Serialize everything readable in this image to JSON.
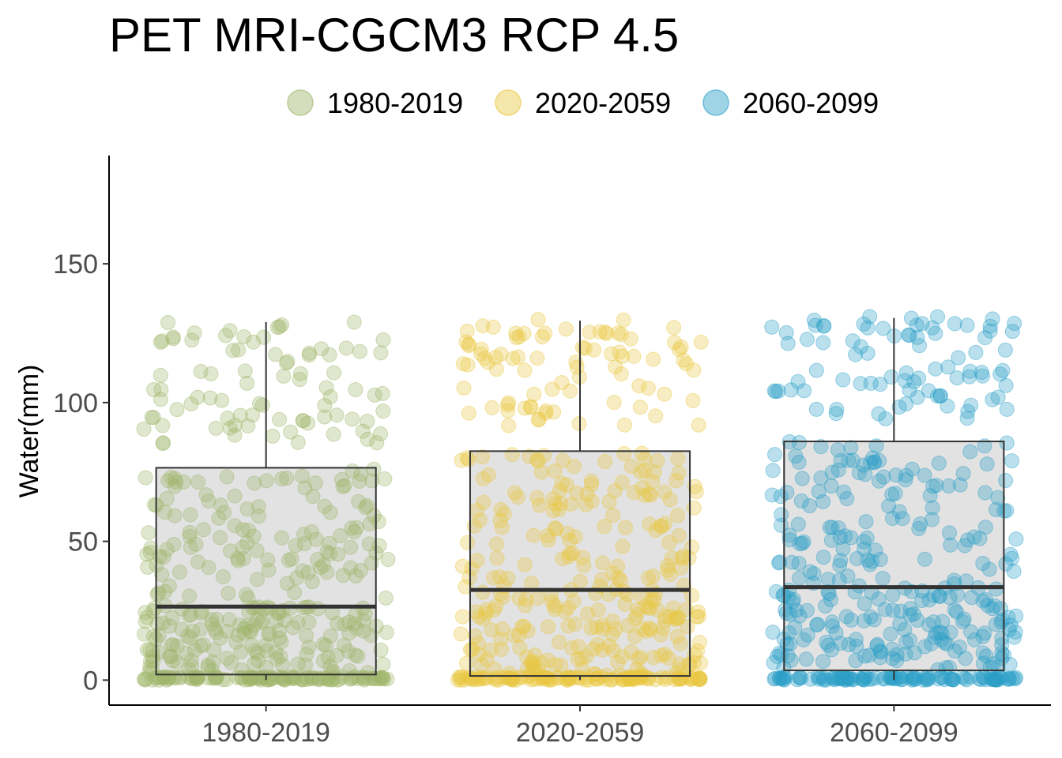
{
  "chart_data": {
    "type": "boxplot",
    "title": "PET MRI-CGCM3 RCP 4.5",
    "xlabel": "",
    "ylabel": "Water(mm)",
    "ylim": [
      -9,
      189
    ],
    "yticks": [
      0,
      50,
      100,
      150
    ],
    "grid": false,
    "legend_position": "top",
    "categories": [
      "1980-2019",
      "2020-2059",
      "2060-2099"
    ],
    "series": [
      {
        "name": "1980-2019",
        "color": "#9fb56b",
        "whisker_low": 0,
        "q1": 2,
        "median": 26.5,
        "q3": 76.5,
        "whisker_high": 129,
        "max_point": 129
      },
      {
        "name": "2020-2059",
        "color": "#e8c840",
        "whisker_low": 0,
        "q1": 1.5,
        "median": 32.5,
        "q3": 82.5,
        "whisker_high": 129.5,
        "max_point": 130
      },
      {
        "name": "2060-2099",
        "color": "#2aa0c8",
        "whisker_low": 0,
        "q1": 3.5,
        "median": 33.5,
        "q3": 86,
        "whisker_high": 130.5,
        "max_point": 131
      }
    ]
  }
}
